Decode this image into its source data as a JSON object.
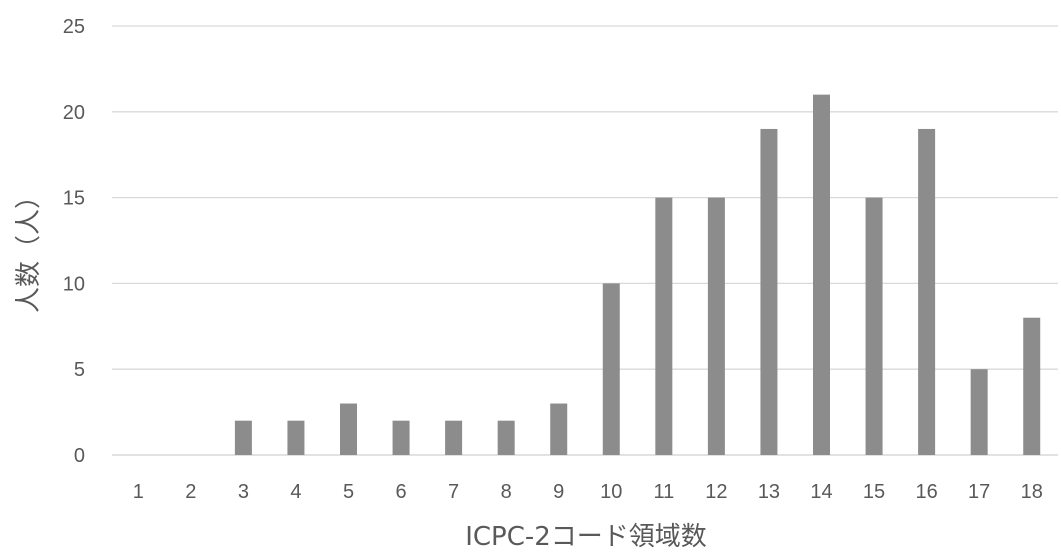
{
  "chart_data": {
    "type": "bar",
    "categories": [
      "1",
      "2",
      "3",
      "4",
      "5",
      "6",
      "7",
      "8",
      "9",
      "10",
      "11",
      "12",
      "13",
      "14",
      "15",
      "16",
      "17",
      "18"
    ],
    "values": [
      0,
      0,
      2,
      2,
      3,
      2,
      2,
      2,
      3,
      10,
      15,
      15,
      19,
      21,
      15,
      19,
      5,
      8
    ],
    "xlabel": "ICPC-2コード領域数",
    "ylabel": "人数（人）",
    "ylim": [
      0,
      25
    ],
    "yticks": [
      0,
      5,
      10,
      15,
      20,
      25
    ],
    "grid": true,
    "bar_color": "#8c8c8c",
    "grid_color": "#d9d9d9",
    "text_color": "#595959"
  }
}
